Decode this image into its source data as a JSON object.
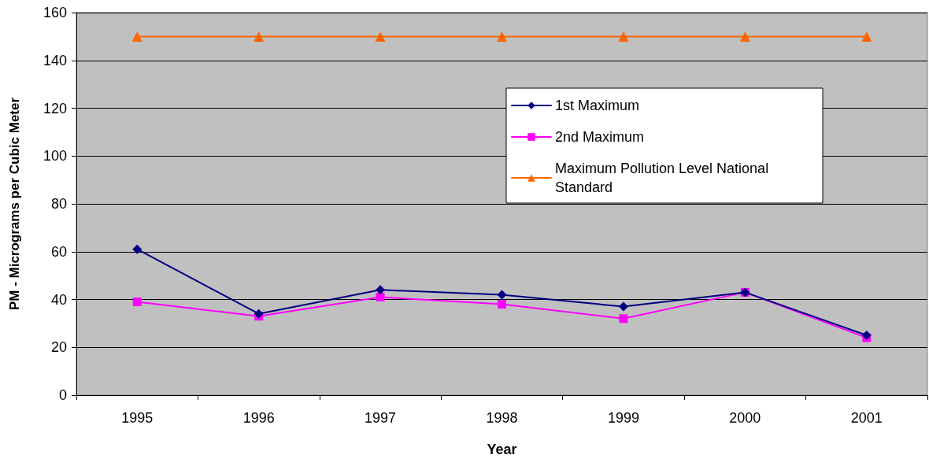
{
  "chart_data": {
    "type": "line",
    "xlabel": "Year",
    "ylabel": "PM - Micrograms per Cubic Meter",
    "categories": [
      "1995",
      "1996",
      "1997",
      "1998",
      "1999",
      "2000",
      "2001"
    ],
    "series": [
      {
        "name": "1st Maximum",
        "color": "#000080",
        "marker": "diamond",
        "values": [
          61,
          34,
          44,
          42,
          37,
          43,
          25
        ]
      },
      {
        "name": "2nd Maximum",
        "color": "#ff00ff",
        "marker": "square",
        "values": [
          39,
          33,
          41,
          38,
          32,
          43,
          24
        ]
      },
      {
        "name": "Maximum Pollution Level National Standard",
        "color": "#ff6600",
        "marker": "triangle",
        "values": [
          150,
          150,
          150,
          150,
          150,
          150,
          150
        ]
      }
    ],
    "ylim": [
      0,
      160
    ],
    "yticks": [
      0,
      20,
      40,
      60,
      80,
      100,
      120,
      140,
      160
    ],
    "grid": "y",
    "legend": "top right",
    "line_style": "solid"
  }
}
